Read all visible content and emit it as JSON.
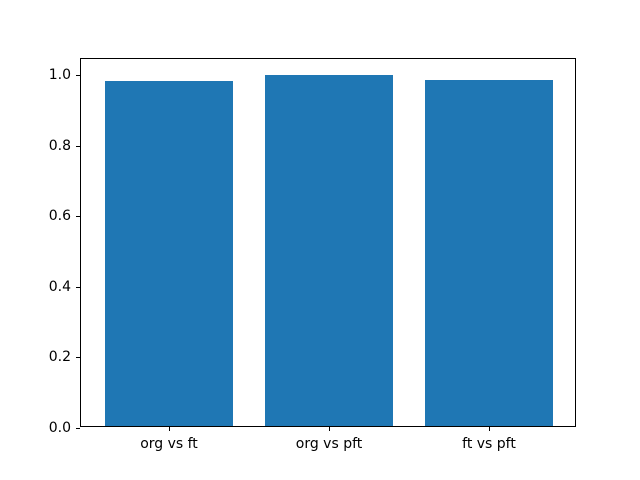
{
  "chart_data": {
    "type": "bar",
    "categories": [
      "org vs ft",
      "org vs pft",
      "ft vs pft"
    ],
    "values": [
      0.978,
      0.996,
      0.982
    ],
    "title": "",
    "xlabel": "",
    "ylabel": "",
    "ylim": [
      0,
      1.046
    ],
    "xlim": [
      -0.55,
      2.55
    ],
    "ytick_labels": [
      "0.0",
      "0.2",
      "0.4",
      "0.6",
      "0.8",
      "1.0"
    ],
    "ytick_values": [
      0.0,
      0.2,
      0.4,
      0.6,
      0.8,
      1.0
    ],
    "bar_width": 0.8,
    "bar_color": "#1f77b4",
    "axis_color": "#000000",
    "background_color": "#ffffff",
    "grid": false,
    "legend": "none"
  }
}
